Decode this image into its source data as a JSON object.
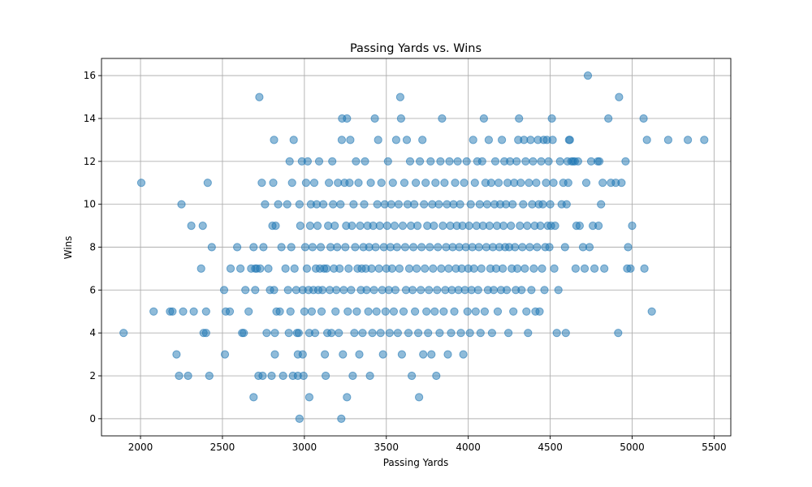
{
  "chart_data": {
    "type": "scatter",
    "title": "Passing Yards vs. Wins",
    "xlabel": "Passing Yards",
    "ylabel": "Wins",
    "xlim": [
      1762,
      5602
    ],
    "ylim": [
      -0.8,
      16.8
    ],
    "xticks": [
      2000,
      2500,
      3000,
      3500,
      4000,
      4500,
      5000,
      5500
    ],
    "yticks": [
      0,
      2,
      4,
      6,
      8,
      10,
      12,
      14,
      16
    ],
    "grid": true,
    "color": "#1f77b4",
    "points": [
      [
        1897,
        4
      ],
      [
        2005,
        11
      ],
      [
        2080,
        5
      ],
      [
        2180,
        5
      ],
      [
        2195,
        5
      ],
      [
        2220,
        3
      ],
      [
        2235,
        2
      ],
      [
        2250,
        10
      ],
      [
        2260,
        5
      ],
      [
        2290,
        2
      ],
      [
        2310,
        9
      ],
      [
        2325,
        5
      ],
      [
        2370,
        7
      ],
      [
        2380,
        9
      ],
      [
        2385,
        4
      ],
      [
        2400,
        5
      ],
      [
        2400,
        4
      ],
      [
        2410,
        11
      ],
      [
        2420,
        2
      ],
      [
        2435,
        8
      ],
      [
        2510,
        6
      ],
      [
        2515,
        3
      ],
      [
        2520,
        5
      ],
      [
        2545,
        5
      ],
      [
        2550,
        7
      ],
      [
        2590,
        8
      ],
      [
        2610,
        7
      ],
      [
        2620,
        4
      ],
      [
        2630,
        4
      ],
      [
        2640,
        6
      ],
      [
        2660,
        5
      ],
      [
        2675,
        7
      ],
      [
        2690,
        8
      ],
      [
        2690,
        1
      ],
      [
        2700,
        6
      ],
      [
        2700,
        7
      ],
      [
        2710,
        7
      ],
      [
        2720,
        2
      ],
      [
        2725,
        15
      ],
      [
        2730,
        7
      ],
      [
        2740,
        11
      ],
      [
        2745,
        2
      ],
      [
        2750,
        8
      ],
      [
        2760,
        10
      ],
      [
        2770,
        4
      ],
      [
        2780,
        7
      ],
      [
        2790,
        6
      ],
      [
        2800,
        2
      ],
      [
        2805,
        9
      ],
      [
        2810,
        11
      ],
      [
        2815,
        6
      ],
      [
        2815,
        13
      ],
      [
        2820,
        4
      ],
      [
        2820,
        3
      ],
      [
        2825,
        9
      ],
      [
        2830,
        5
      ],
      [
        2840,
        10
      ],
      [
        2850,
        5
      ],
      [
        2860,
        8
      ],
      [
        2870,
        2
      ],
      [
        2885,
        7
      ],
      [
        2895,
        10
      ],
      [
        2900,
        6
      ],
      [
        2905,
        4
      ],
      [
        2910,
        12
      ],
      [
        2915,
        5
      ],
      [
        2920,
        8
      ],
      [
        2925,
        11
      ],
      [
        2930,
        2
      ],
      [
        2935,
        13
      ],
      [
        2940,
        7
      ],
      [
        2950,
        6
      ],
      [
        2955,
        4
      ],
      [
        2960,
        2
      ],
      [
        2960,
        3
      ],
      [
        2965,
        4
      ],
      [
        2970,
        0
      ],
      [
        2970,
        10
      ],
      [
        2975,
        9
      ],
      [
        2985,
        12
      ],
      [
        2990,
        3
      ],
      [
        2990,
        6
      ],
      [
        2995,
        2
      ],
      [
        3000,
        5
      ],
      [
        3005,
        8
      ],
      [
        3010,
        11
      ],
      [
        3015,
        7
      ],
      [
        3020,
        12
      ],
      [
        3025,
        6
      ],
      [
        3030,
        1
      ],
      [
        3030,
        4
      ],
      [
        3035,
        9
      ],
      [
        3040,
        10
      ],
      [
        3045,
        5
      ],
      [
        3050,
        8
      ],
      [
        3055,
        6
      ],
      [
        3060,
        11
      ],
      [
        3065,
        4
      ],
      [
        3070,
        7
      ],
      [
        3075,
        10
      ],
      [
        3080,
        9
      ],
      [
        3085,
        6
      ],
      [
        3090,
        12
      ],
      [
        3095,
        7
      ],
      [
        3100,
        8
      ],
      [
        3105,
        5
      ],
      [
        3110,
        6
      ],
      [
        3115,
        10
      ],
      [
        3120,
        7
      ],
      [
        3125,
        3
      ],
      [
        3130,
        2
      ],
      [
        3135,
        7
      ],
      [
        3140,
        4
      ],
      [
        3145,
        9
      ],
      [
        3150,
        11
      ],
      [
        3155,
        6
      ],
      [
        3160,
        8
      ],
      [
        3165,
        4
      ],
      [
        3170,
        12
      ],
      [
        3175,
        10
      ],
      [
        3180,
        7
      ],
      [
        3185,
        9
      ],
      [
        3190,
        5
      ],
      [
        3195,
        6
      ],
      [
        3200,
        8
      ],
      [
        3205,
        11
      ],
      [
        3210,
        4
      ],
      [
        3215,
        7
      ],
      [
        3220,
        10
      ],
      [
        3225,
        0
      ],
      [
        3228,
        13
      ],
      [
        3230,
        14
      ],
      [
        3235,
        3
      ],
      [
        3240,
        6
      ],
      [
        3245,
        11
      ],
      [
        3250,
        8
      ],
      [
        3255,
        9
      ],
      [
        3260,
        1
      ],
      [
        3260,
        14
      ],
      [
        3265,
        5
      ],
      [
        3270,
        7
      ],
      [
        3275,
        11
      ],
      [
        3280,
        13
      ],
      [
        3285,
        6
      ],
      [
        3290,
        9
      ],
      [
        3295,
        2
      ],
      [
        3300,
        10
      ],
      [
        3305,
        4
      ],
      [
        3310,
        8
      ],
      [
        3315,
        12
      ],
      [
        3320,
        5
      ],
      [
        3325,
        7
      ],
      [
        3330,
        11
      ],
      [
        3335,
        3
      ],
      [
        3340,
        9
      ],
      [
        3345,
        6
      ],
      [
        3350,
        7
      ],
      [
        3355,
        4
      ],
      [
        3360,
        8
      ],
      [
        3365,
        10
      ],
      [
        3370,
        12
      ],
      [
        3375,
        7
      ],
      [
        3380,
        6
      ],
      [
        3385,
        9
      ],
      [
        3390,
        5
      ],
      [
        3395,
        8
      ],
      [
        3400,
        2
      ],
      [
        3405,
        11
      ],
      [
        3410,
        7
      ],
      [
        3415,
        4
      ],
      [
        3420,
        9
      ],
      [
        3425,
        6
      ],
      [
        3430,
        14
      ],
      [
        3435,
        8
      ],
      [
        3440,
        5
      ],
      [
        3445,
        10
      ],
      [
        3450,
        13
      ],
      [
        3455,
        7
      ],
      [
        3460,
        9
      ],
      [
        3465,
        4
      ],
      [
        3470,
        11
      ],
      [
        3475,
        6
      ],
      [
        3480,
        3
      ],
      [
        3485,
        8
      ],
      [
        3490,
        10
      ],
      [
        3495,
        5
      ],
      [
        3500,
        7
      ],
      [
        3505,
        9
      ],
      [
        3510,
        12
      ],
      [
        3515,
        6
      ],
      [
        3520,
        4
      ],
      [
        3525,
        8
      ],
      [
        3530,
        10
      ],
      [
        3535,
        7
      ],
      [
        3540,
        11
      ],
      [
        3545,
        5
      ],
      [
        3550,
        9
      ],
      [
        3555,
        6
      ],
      [
        3560,
        13
      ],
      [
        3565,
        8
      ],
      [
        3570,
        4
      ],
      [
        3575,
        10
      ],
      [
        3580,
        7
      ],
      [
        3585,
        15
      ],
      [
        3590,
        14
      ],
      [
        3595,
        3
      ],
      [
        3600,
        9
      ],
      [
        3605,
        5
      ],
      [
        3610,
        11
      ],
      [
        3615,
        8
      ],
      [
        3620,
        6
      ],
      [
        3625,
        13
      ],
      [
        3630,
        10
      ],
      [
        3635,
        4
      ],
      [
        3640,
        7
      ],
      [
        3645,
        12
      ],
      [
        3650,
        9
      ],
      [
        3655,
        2
      ],
      [
        3660,
        6
      ],
      [
        3665,
        8
      ],
      [
        3670,
        10
      ],
      [
        3675,
        5
      ],
      [
        3680,
        11
      ],
      [
        3685,
        7
      ],
      [
        3690,
        9
      ],
      [
        3695,
        4
      ],
      [
        3700,
        1
      ],
      [
        3705,
        12
      ],
      [
        3710,
        6
      ],
      [
        3715,
        8
      ],
      [
        3720,
        13
      ],
      [
        3725,
        3
      ],
      [
        3730,
        10
      ],
      [
        3735,
        7
      ],
      [
        3740,
        11
      ],
      [
        3745,
        5
      ],
      [
        3750,
        9
      ],
      [
        3755,
        4
      ],
      [
        3760,
        6
      ],
      [
        3765,
        8
      ],
      [
        3770,
        12
      ],
      [
        3775,
        3
      ],
      [
        3780,
        10
      ],
      [
        3785,
        7
      ],
      [
        3790,
        9
      ],
      [
        3795,
        5
      ],
      [
        3800,
        11
      ],
      [
        3805,
        2
      ],
      [
        3810,
        6
      ],
      [
        3815,
        8
      ],
      [
        3820,
        10
      ],
      [
        3825,
        4
      ],
      [
        3830,
        12
      ],
      [
        3835,
        7
      ],
      [
        3840,
        14
      ],
      [
        3845,
        9
      ],
      [
        3850,
        5
      ],
      [
        3855,
        11
      ],
      [
        3860,
        6
      ],
      [
        3865,
        8
      ],
      [
        3870,
        10
      ],
      [
        3875,
        3
      ],
      [
        3880,
        7
      ],
      [
        3885,
        12
      ],
      [
        3890,
        9
      ],
      [
        3895,
        4
      ],
      [
        3900,
        6
      ],
      [
        3905,
        8
      ],
      [
        3910,
        10
      ],
      [
        3915,
        5
      ],
      [
        3920,
        11
      ],
      [
        3925,
        7
      ],
      [
        3930,
        9
      ],
      [
        3935,
        12
      ],
      [
        3940,
        6
      ],
      [
        3945,
        8
      ],
      [
        3950,
        10
      ],
      [
        3955,
        4
      ],
      [
        3960,
        7
      ],
      [
        3965,
        9
      ],
      [
        3970,
        3
      ],
      [
        3975,
        11
      ],
      [
        3980,
        6
      ],
      [
        3985,
        8
      ],
      [
        3990,
        12
      ],
      [
        3995,
        5
      ],
      [
        4000,
        7
      ],
      [
        4005,
        9
      ],
      [
        4010,
        4
      ],
      [
        4015,
        10
      ],
      [
        4020,
        6
      ],
      [
        4025,
        8
      ],
      [
        4030,
        13
      ],
      [
        4035,
        7
      ],
      [
        4040,
        11
      ],
      [
        4045,
        5
      ],
      [
        4050,
        9
      ],
      [
        4055,
        12
      ],
      [
        4060,
        6
      ],
      [
        4065,
        8
      ],
      [
        4070,
        10
      ],
      [
        4075,
        4
      ],
      [
        4080,
        7
      ],
      [
        4085,
        12
      ],
      [
        4090,
        9
      ],
      [
        4095,
        14
      ],
      [
        4100,
        5
      ],
      [
        4105,
        11
      ],
      [
        4110,
        8
      ],
      [
        4115,
        10
      ],
      [
        4120,
        6
      ],
      [
        4125,
        13
      ],
      [
        4130,
        9
      ],
      [
        4135,
        7
      ],
      [
        4140,
        11
      ],
      [
        4145,
        4
      ],
      [
        4150,
        8
      ],
      [
        4155,
        6
      ],
      [
        4160,
        10
      ],
      [
        4165,
        12
      ],
      [
        4170,
        7
      ],
      [
        4175,
        9
      ],
      [
        4180,
        5
      ],
      [
        4185,
        11
      ],
      [
        4190,
        8
      ],
      [
        4195,
        10
      ],
      [
        4200,
        6
      ],
      [
        4205,
        13
      ],
      [
        4210,
        7
      ],
      [
        4215,
        9
      ],
      [
        4220,
        12
      ],
      [
        4225,
        8
      ],
      [
        4230,
        10
      ],
      [
        4235,
        6
      ],
      [
        4240,
        11
      ],
      [
        4245,
        4
      ],
      [
        4250,
        8
      ],
      [
        4255,
        12
      ],
      [
        4260,
        9
      ],
      [
        4265,
        7
      ],
      [
        4270,
        10
      ],
      [
        4275,
        5
      ],
      [
        4280,
        11
      ],
      [
        4285,
        8
      ],
      [
        4290,
        6
      ],
      [
        4295,
        12
      ],
      [
        4300,
        7
      ],
      [
        4305,
        13
      ],
      [
        4310,
        14
      ],
      [
        4315,
        9
      ],
      [
        4320,
        11
      ],
      [
        4325,
        6
      ],
      [
        4330,
        8
      ],
      [
        4335,
        10
      ],
      [
        4340,
        13
      ],
      [
        4345,
        7
      ],
      [
        4350,
        12
      ],
      [
        4355,
        5
      ],
      [
        4360,
        9
      ],
      [
        4365,
        4
      ],
      [
        4370,
        11
      ],
      [
        4375,
        8
      ],
      [
        4380,
        13
      ],
      [
        4385,
        6
      ],
      [
        4390,
        10
      ],
      [
        4395,
        12
      ],
      [
        4400,
        7
      ],
      [
        4405,
        9
      ],
      [
        4410,
        5
      ],
      [
        4415,
        11
      ],
      [
        4420,
        8
      ],
      [
        4425,
        13
      ],
      [
        4430,
        10
      ],
      [
        4435,
        5
      ],
      [
        4440,
        9
      ],
      [
        4445,
        12
      ],
      [
        4450,
        7
      ],
      [
        4455,
        10
      ],
      [
        4460,
        13
      ],
      [
        4465,
        6
      ],
      [
        4470,
        8
      ],
      [
        4475,
        11
      ],
      [
        4480,
        13
      ],
      [
        4485,
        9
      ],
      [
        4490,
        12
      ],
      [
        4495,
        8
      ],
      [
        4500,
        10
      ],
      [
        4505,
        9
      ],
      [
        4510,
        14
      ],
      [
        4515,
        13
      ],
      [
        4520,
        11
      ],
      [
        4525,
        7
      ],
      [
        4530,
        9
      ],
      [
        4540,
        4
      ],
      [
        4550,
        6
      ],
      [
        4560,
        12
      ],
      [
        4570,
        10
      ],
      [
        4580,
        11
      ],
      [
        4590,
        8
      ],
      [
        4595,
        4
      ],
      [
        4600,
        10
      ],
      [
        4605,
        12
      ],
      [
        4610,
        11
      ],
      [
        4615,
        13
      ],
      [
        4620,
        13
      ],
      [
        4630,
        12
      ],
      [
        4640,
        12
      ],
      [
        4650,
        12
      ],
      [
        4655,
        7
      ],
      [
        4660,
        9
      ],
      [
        4670,
        12
      ],
      [
        4680,
        9
      ],
      [
        4700,
        8
      ],
      [
        4710,
        7
      ],
      [
        4720,
        11
      ],
      [
        4730,
        16
      ],
      [
        4740,
        8
      ],
      [
        4750,
        12
      ],
      [
        4760,
        9
      ],
      [
        4770,
        7
      ],
      [
        4790,
        12
      ],
      [
        4795,
        9
      ],
      [
        4800,
        12
      ],
      [
        4810,
        10
      ],
      [
        4820,
        11
      ],
      [
        4830,
        7
      ],
      [
        4855,
        14
      ],
      [
        4870,
        11
      ],
      [
        4900,
        11
      ],
      [
        4915,
        4
      ],
      [
        4920,
        15
      ],
      [
        4935,
        11
      ],
      [
        4960,
        12
      ],
      [
        4970,
        7
      ],
      [
        4975,
        8
      ],
      [
        4990,
        7
      ],
      [
        5000,
        9
      ],
      [
        5070,
        14
      ],
      [
        5075,
        7
      ],
      [
        5090,
        13
      ],
      [
        5120,
        5
      ],
      [
        5220,
        13
      ],
      [
        5340,
        13
      ],
      [
        5440,
        13
      ]
    ]
  }
}
